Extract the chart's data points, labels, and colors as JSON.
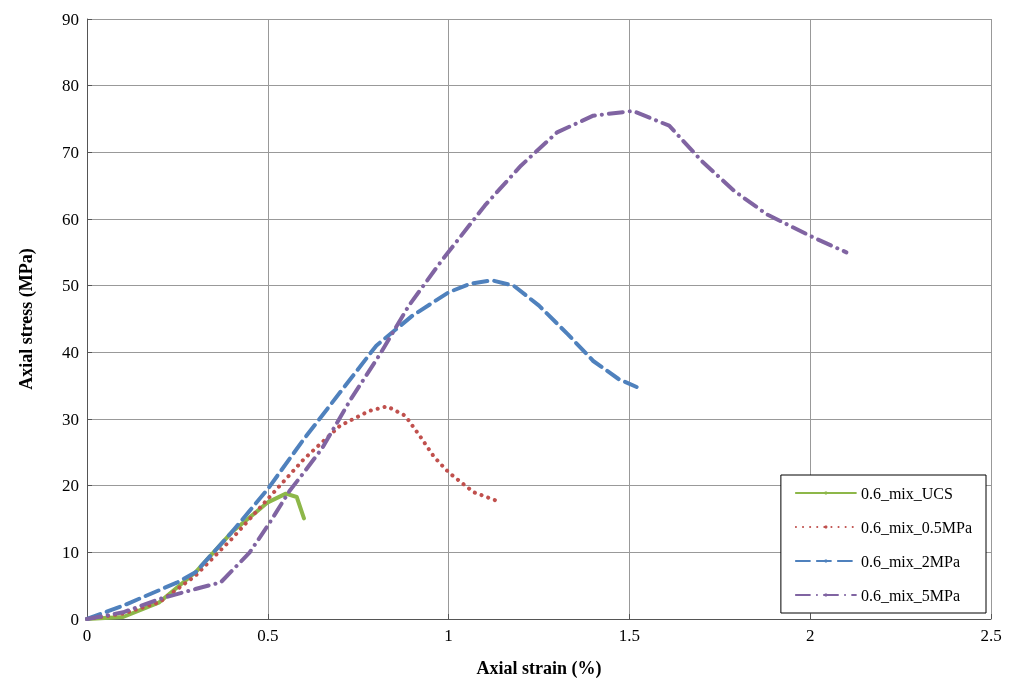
{
  "chart_data": {
    "type": "line",
    "xlabel": "Axial strain (%)",
    "ylabel": "Axial stress (MPa)",
    "xlim": [
      0,
      2.5
    ],
    "xticks": [
      0,
      0.5,
      1,
      1.5,
      2,
      2.5
    ],
    "ylim": [
      0,
      90
    ],
    "yticks": [
      0,
      10,
      20,
      30,
      40,
      50,
      60,
      70,
      80,
      90
    ],
    "grid": true,
    "legend": "bottom right",
    "marker": "none",
    "series": [
      {
        "name": "0.6_mix_UCS",
        "color": "#8db749",
        "line_style": "solid",
        "x": [
          0,
          0.1,
          0.2,
          0.3,
          0.4,
          0.5,
          0.55,
          0.58,
          0.6
        ],
        "values": [
          0,
          0.3,
          2.5,
          7,
          13,
          17.5,
          18.8,
          18.3,
          15.1
        ]
      },
      {
        "name": "0.6_mix_0.5MPa",
        "color": "#c0504d",
        "line_style": "dotted",
        "x": [
          0,
          0.1,
          0.2,
          0.3,
          0.4,
          0.5,
          0.6,
          0.7,
          0.78,
          0.83,
          0.88,
          0.92,
          0.96,
          1.0,
          1.03,
          1.07,
          1.13
        ],
        "values": [
          0,
          0.8,
          2.5,
          6.5,
          12,
          18,
          24,
          29,
          31.2,
          31.9,
          30.5,
          27.5,
          24.3,
          22,
          20.7,
          19,
          17.8
        ]
      },
      {
        "name": "0.6_mix_2MPa",
        "color": "#4f81bd",
        "line_style": "dashed",
        "x": [
          0,
          0.1,
          0.25,
          0.3,
          0.4,
          0.5,
          0.6,
          0.7,
          0.8,
          0.9,
          1.0,
          1.06,
          1.12,
          1.18,
          1.25,
          1.33,
          1.4,
          1.47,
          1.52
        ],
        "values": [
          0,
          2,
          5.5,
          7,
          13,
          19.5,
          27,
          34,
          41,
          45.5,
          49,
          50.3,
          50.8,
          50,
          47,
          42.7,
          38.7,
          36,
          34.8
        ]
      },
      {
        "name": "0.6_mix_5MPa",
        "color": "#8064a2",
        "line_style": "dashdot",
        "x": [
          0,
          0.1,
          0.2,
          0.3,
          0.37,
          0.45,
          0.5,
          0.56,
          0.6,
          0.65,
          0.73,
          0.81,
          0.89,
          0.98,
          1.1,
          1.2,
          1.3,
          1.4,
          1.51,
          1.61,
          1.7,
          1.79,
          1.88,
          2.01,
          2.1
        ],
        "values": [
          0,
          1,
          3,
          4.5,
          5.5,
          10,
          14,
          19.2,
          22,
          25.6,
          33,
          39.7,
          47,
          53.7,
          62,
          68,
          73,
          75.5,
          76.2,
          74,
          68.7,
          64.2,
          60.7,
          57.2,
          55
        ]
      }
    ]
  }
}
